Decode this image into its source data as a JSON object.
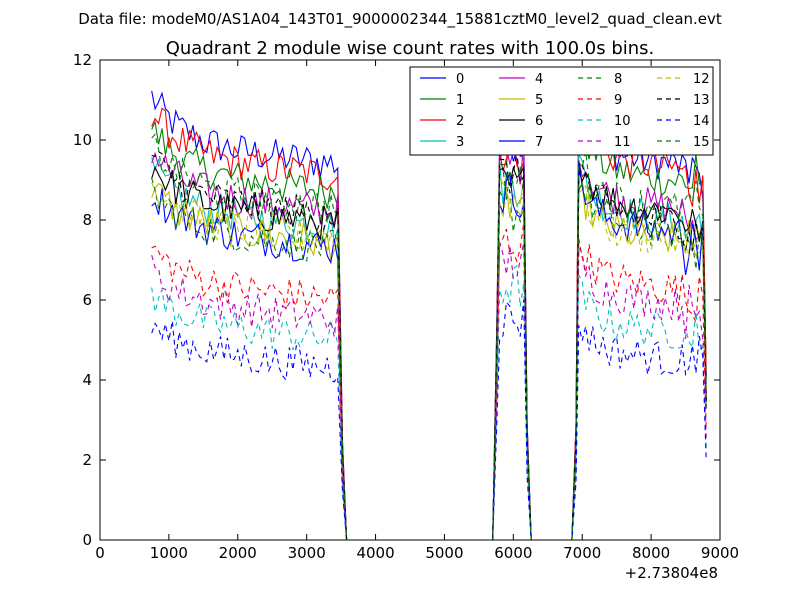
{
  "chart_data": {
    "type": "line",
    "suptitle": "Data file: modeM0/AS1A04_143T01_9000002344_15881cztM0_level2_quad_clean.evt",
    "title": "Quadrant 2 module wise count rates with 100.0s bins.",
    "xlabel": "",
    "ylabel": "",
    "x_offset_label": "+2.73804e8",
    "xlim": [
      0,
      9000
    ],
    "ylim": [
      0,
      12
    ],
    "xticks": [
      0,
      1000,
      2000,
      3000,
      4000,
      5000,
      6000,
      7000,
      8000,
      9000
    ],
    "xtick_labels": [
      "0",
      "1000",
      "2000",
      "3000",
      "4000",
      "5000",
      "6000",
      "7000",
      "8000",
      "9000"
    ],
    "yticks": [
      0,
      2,
      4,
      6,
      8,
      10,
      12
    ],
    "ytick_labels": [
      "0",
      "2",
      "4",
      "6",
      "8",
      "10",
      "12"
    ],
    "grid": false,
    "legend_position": "top-right",
    "segments": [
      {
        "x_start": 750,
        "x_end": 3450
      },
      {
        "x_start": 5800,
        "x_end": 6150
      },
      {
        "x_start": 6950,
        "x_end": 8750
      }
    ],
    "off_ranges": [
      [
        3550,
        5700
      ],
      [
        6250,
        6850
      ]
    ],
    "series": [
      {
        "name": "0",
        "color": "#0000ff",
        "style": "solid",
        "levels": [
          9.9,
          9.8,
          9.7,
          9.1
        ]
      },
      {
        "name": "1",
        "color": "#008000",
        "style": "solid",
        "levels": [
          9.2,
          9.6,
          9.3,
          8.9
        ]
      },
      {
        "name": "2",
        "color": "#ff0000",
        "style": "solid",
        "levels": [
          9.6,
          9.5,
          9.6,
          9.0
        ]
      },
      {
        "name": "3",
        "color": "#00bfbf",
        "style": "solid",
        "levels": [
          8.3,
          8.7,
          8.3,
          7.6
        ]
      },
      {
        "name": "4",
        "color": "#bf00bf",
        "style": "solid",
        "levels": [
          8.7,
          9.2,
          8.6,
          7.9
        ]
      },
      {
        "name": "5",
        "color": "#bfbf00",
        "style": "solid",
        "levels": [
          7.9,
          8.2,
          7.8,
          7.3
        ]
      },
      {
        "name": "6",
        "color": "#000000",
        "style": "solid",
        "levels": [
          8.4,
          8.6,
          8.5,
          7.8
        ]
      },
      {
        "name": "7",
        "color": "#0000ff",
        "style": "solid",
        "levels": [
          7.8,
          8.4,
          8.0,
          7.3
        ]
      },
      {
        "name": "8",
        "color": "#008000",
        "style": "dashed",
        "levels": [
          7.8,
          8.0,
          8.0,
          7.5
        ]
      },
      {
        "name": "9",
        "color": "#ff0000",
        "style": "dashed",
        "levels": [
          6.5,
          7.2,
          6.6,
          6.1
        ]
      },
      {
        "name": "10",
        "color": "#00bfbf",
        "style": "dashed",
        "levels": [
          5.5,
          6.1,
          5.5,
          5.1
        ]
      },
      {
        "name": "11",
        "color": "#bf00bf",
        "style": "dashed",
        "levels": [
          6.0,
          6.7,
          6.2,
          5.7
        ]
      },
      {
        "name": "12",
        "color": "#bfbf00",
        "style": "dashed",
        "levels": [
          8.0,
          8.3,
          7.8,
          7.5
        ]
      },
      {
        "name": "13",
        "color": "#000000",
        "style": "dashed",
        "levels": [
          8.6,
          8.9,
          8.3,
          7.7
        ]
      },
      {
        "name": "14",
        "color": "#0000ff",
        "style": "dashed",
        "levels": [
          4.8,
          5.3,
          4.8,
          4.4
        ]
      },
      {
        "name": "15",
        "color": "#008000",
        "style": "dashed",
        "levels": [
          8.8,
          8.7,
          8.6,
          8.3
        ]
      }
    ]
  }
}
